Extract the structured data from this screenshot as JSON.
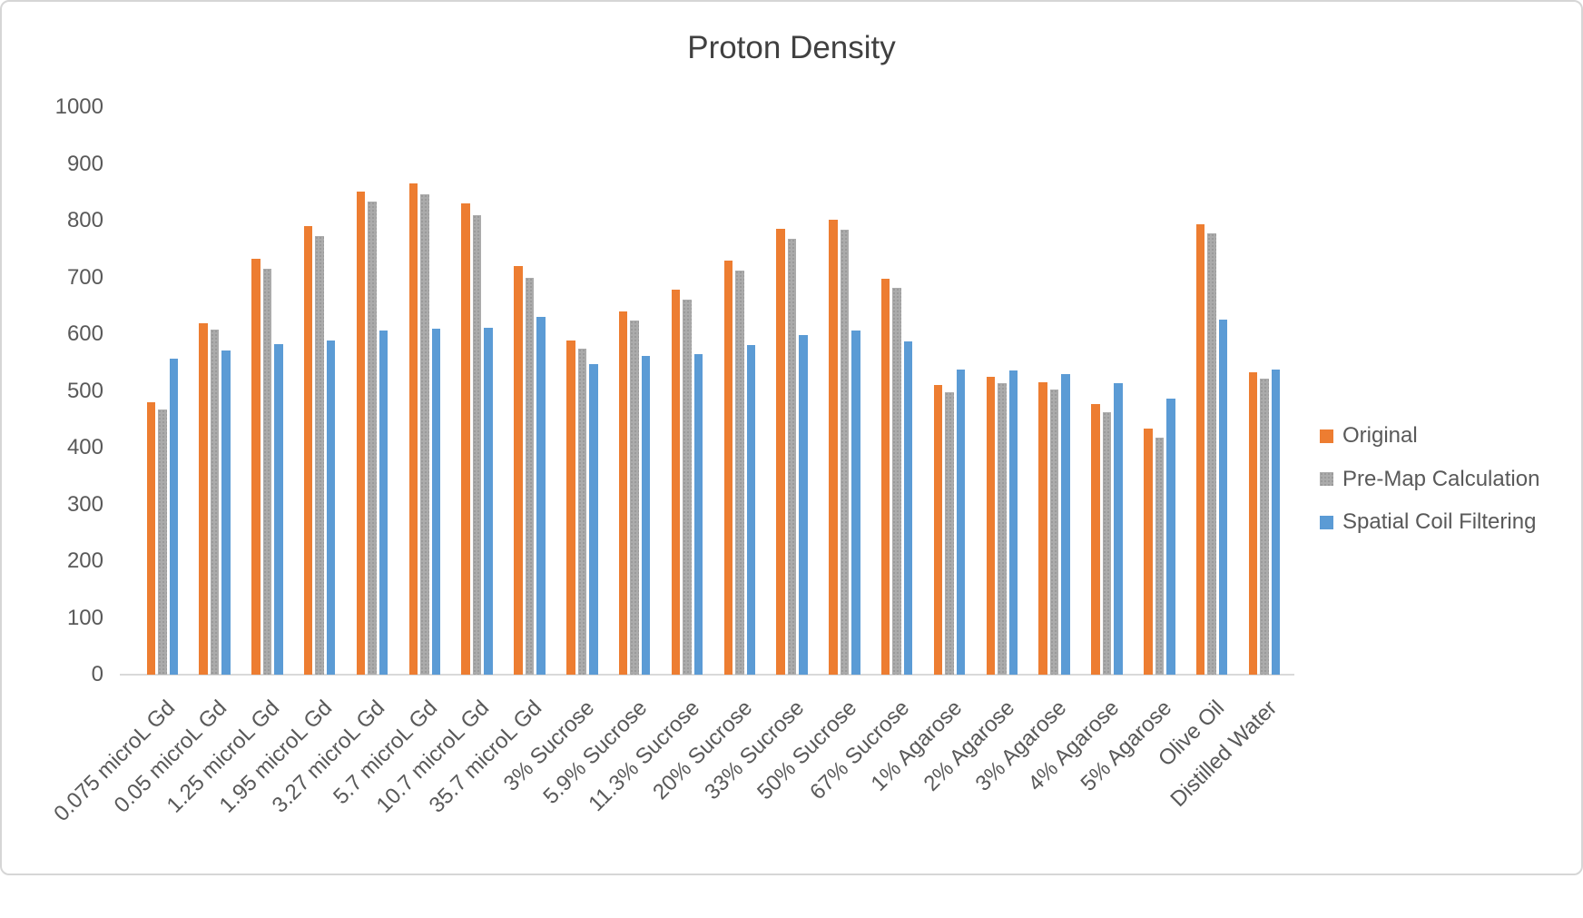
{
  "chart_data": {
    "type": "bar",
    "title": "Proton Density",
    "xlabel": "",
    "ylabel": "",
    "ylim": [
      0,
      1000
    ],
    "ytick_step": 100,
    "ytick_labels": [
      "0",
      "100",
      "200",
      "300",
      "400",
      "500",
      "600",
      "700",
      "800",
      "900",
      "1000"
    ],
    "grid": false,
    "legend_position": "right",
    "categories": [
      "0.075 microL Gd",
      "0.05 microL Gd",
      "1.25 microL Gd",
      "1.95 microL Gd",
      "3.27 microL Gd",
      "5.7 microL Gd",
      "10.7 microL Gd",
      "35.7 microL Gd",
      "3% Sucrose",
      "5.9% Sucrose",
      "11.3% Sucrose",
      "20% Sucrose",
      "33% Sucrose",
      "50% Sucrose",
      "67% Sucrose",
      "1% Agarose",
      "2% Agarose",
      "3% Agarose",
      "4% Agarose",
      "5% Agarose",
      "Olive Oil",
      "Distilled Water"
    ],
    "series": [
      {
        "name": "Original",
        "color": "#ED7D31",
        "pattern": "solid",
        "values": [
          480,
          620,
          733,
          791,
          852,
          866,
          830,
          720,
          589,
          640,
          678,
          729,
          786,
          801,
          697,
          510,
          525,
          516,
          477,
          434,
          794,
          533
        ]
      },
      {
        "name": "Pre-Map Calculation",
        "color": "#ABABAB",
        "pattern": "dots",
        "values": [
          467,
          608,
          715,
          773,
          833,
          846,
          810,
          700,
          574,
          624,
          661,
          712,
          768,
          784,
          681,
          498,
          513,
          502,
          463,
          418,
          778,
          521
        ]
      },
      {
        "name": "Spatial Coil Filtering",
        "color": "#5B9BD5",
        "pattern": "solid",
        "values": [
          557,
          572,
          582,
          589,
          606,
          609,
          611,
          630,
          547,
          562,
          565,
          581,
          598,
          607,
          588,
          538,
          536,
          529,
          514,
          487,
          625,
          538
        ]
      }
    ]
  }
}
